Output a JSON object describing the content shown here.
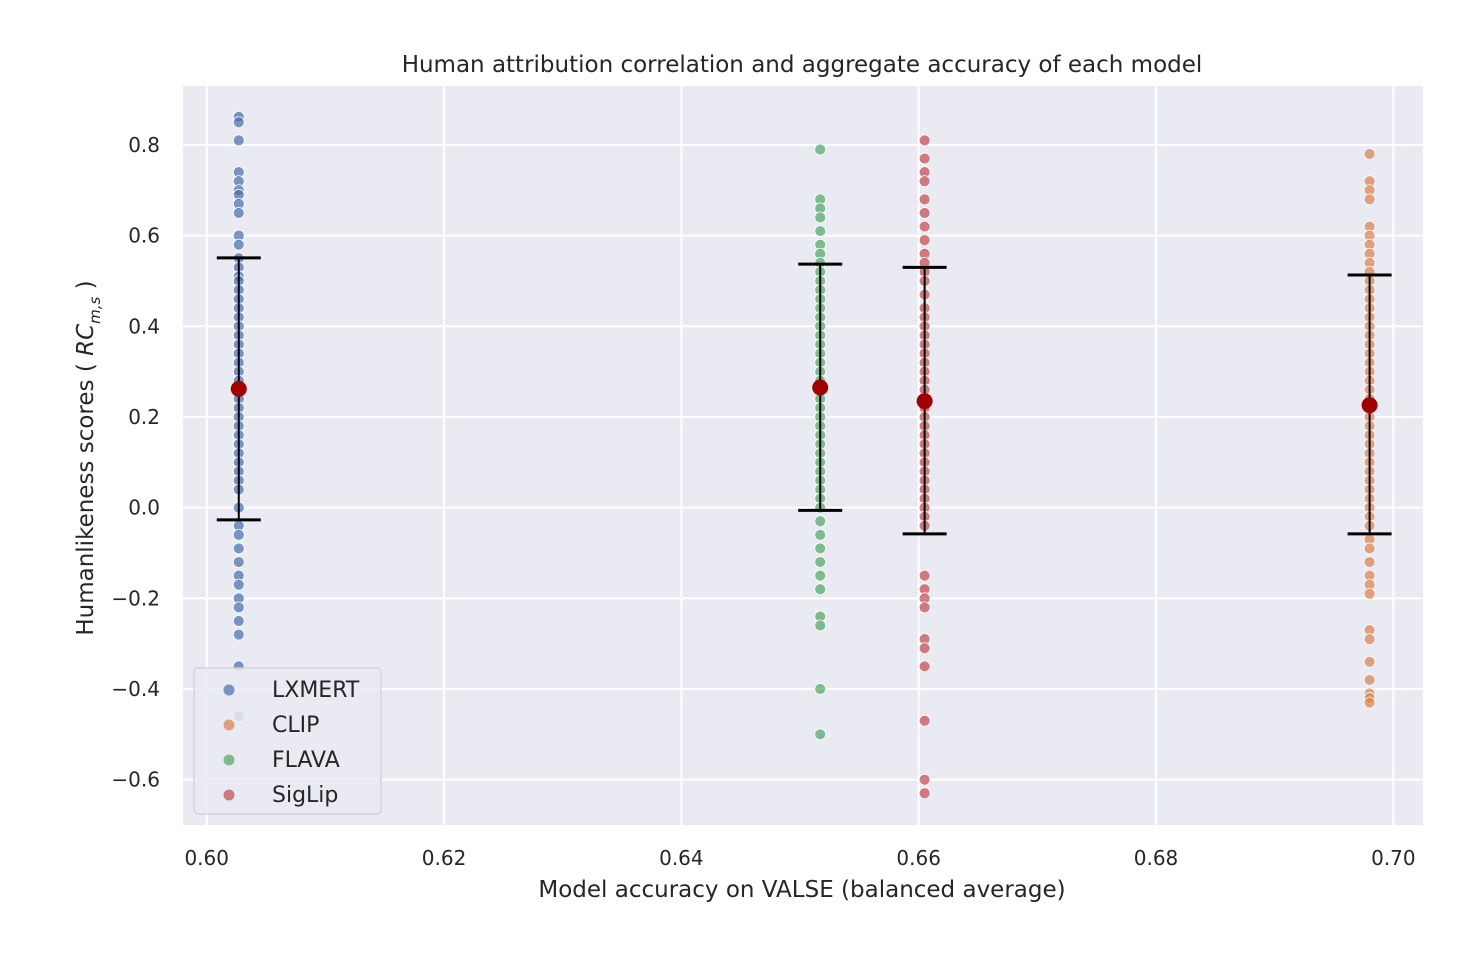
{
  "chart_data": {
    "type": "scatter",
    "title": "Human attribution correlation and aggregate accuracy of each model",
    "xlabel": "Model accuracy on VALSE (balanced average)",
    "ylabel_main": "Humanlikeness scores ( ",
    "ylabel_math": "RC",
    "ylabel_sub": "m,s",
    "ylabel_close": " )",
    "xlim": [
      0.598,
      0.7025
    ],
    "ylim": [
      -0.7,
      0.93
    ],
    "xticks": [
      0.6,
      0.62,
      0.64,
      0.66,
      0.68,
      0.7
    ],
    "xtick_labels": [
      "0.60",
      "0.62",
      "0.64",
      "0.66",
      "0.68",
      "0.70"
    ],
    "yticks": [
      -0.6,
      -0.4,
      -0.2,
      0.0,
      0.2,
      0.4,
      0.6,
      0.8
    ],
    "ytick_labels": [
      "−0.6",
      "−0.4",
      "−0.2",
      "0.0",
      "0.2",
      "0.4",
      "0.6",
      "0.8"
    ],
    "grid": true,
    "legend_position": "lower-left",
    "series": [
      {
        "name": "LXMERT",
        "color": "#4c72b0",
        "x": 0.6027,
        "mean": 0.262,
        "err_low": -0.027,
        "err_high": 0.551,
        "y": [
          0.862,
          0.85,
          0.81,
          0.74,
          0.72,
          0.7,
          0.69,
          0.67,
          0.65,
          0.6,
          0.58,
          0.55,
          0.53,
          0.51,
          0.5,
          0.48,
          0.46,
          0.44,
          0.42,
          0.4,
          0.38,
          0.36,
          0.34,
          0.32,
          0.3,
          0.28,
          0.26,
          0.24,
          0.22,
          0.2,
          0.18,
          0.16,
          0.14,
          0.12,
          0.1,
          0.08,
          0.06,
          0.04,
          0.0,
          -0.04,
          -0.06,
          -0.09,
          -0.12,
          -0.15,
          -0.17,
          -0.2,
          -0.22,
          -0.25,
          -0.28,
          -0.35,
          -0.46
        ]
      },
      {
        "name": "CLIP",
        "color": "#dd8452",
        "x": 0.698,
        "mean": 0.226,
        "err_low": -0.058,
        "err_high": 0.513,
        "y": [
          0.78,
          0.72,
          0.7,
          0.68,
          0.62,
          0.6,
          0.58,
          0.56,
          0.54,
          0.52,
          0.5,
          0.48,
          0.46,
          0.44,
          0.42,
          0.4,
          0.38,
          0.36,
          0.34,
          0.32,
          0.3,
          0.28,
          0.26,
          0.24,
          0.22,
          0.2,
          0.18,
          0.16,
          0.14,
          0.12,
          0.1,
          0.08,
          0.06,
          0.04,
          0.02,
          0.0,
          -0.02,
          -0.04,
          -0.07,
          -0.09,
          -0.12,
          -0.15,
          -0.17,
          -0.19,
          -0.27,
          -0.29,
          -0.34,
          -0.38,
          -0.41,
          -0.42,
          -0.43
        ]
      },
      {
        "name": "FLAVA",
        "color": "#55a868",
        "x": 0.6517,
        "mean": 0.265,
        "err_low": -0.006,
        "err_high": 0.537,
        "y": [
          0.79,
          0.68,
          0.66,
          0.64,
          0.61,
          0.58,
          0.56,
          0.54,
          0.52,
          0.5,
          0.48,
          0.46,
          0.44,
          0.42,
          0.4,
          0.38,
          0.36,
          0.34,
          0.32,
          0.3,
          0.28,
          0.26,
          0.24,
          0.22,
          0.2,
          0.18,
          0.16,
          0.14,
          0.12,
          0.1,
          0.08,
          0.06,
          0.04,
          0.02,
          0.0,
          -0.03,
          -0.06,
          -0.09,
          -0.12,
          -0.15,
          -0.18,
          -0.24,
          -0.26,
          -0.4,
          -0.5
        ]
      },
      {
        "name": "SigLip",
        "color": "#c44e52",
        "x": 0.6605,
        "mean": 0.235,
        "err_low": -0.058,
        "err_high": 0.53,
        "y": [
          0.81,
          0.77,
          0.74,
          0.72,
          0.68,
          0.65,
          0.62,
          0.59,
          0.56,
          0.54,
          0.52,
          0.5,
          0.47,
          0.44,
          0.42,
          0.4,
          0.38,
          0.36,
          0.34,
          0.32,
          0.3,
          0.28,
          0.26,
          0.24,
          0.22,
          0.2,
          0.18,
          0.16,
          0.14,
          0.12,
          0.1,
          0.08,
          0.06,
          0.04,
          0.02,
          0.0,
          -0.02,
          -0.04,
          -0.15,
          -0.18,
          -0.2,
          -0.22,
          -0.29,
          -0.31,
          -0.35,
          -0.47,
          -0.6,
          -0.63
        ]
      }
    ],
    "mean_marker_color": "#a00000",
    "errorbar_color": "#000000",
    "background_color": "#eaeaf2"
  }
}
